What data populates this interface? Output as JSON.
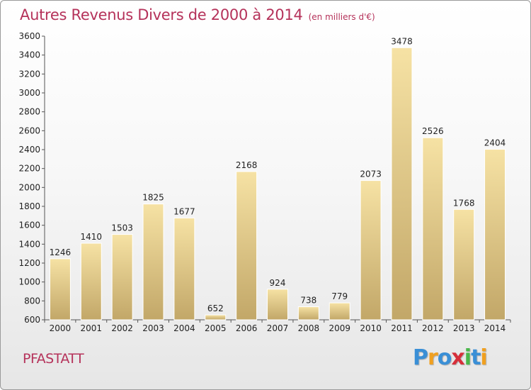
{
  "title": "Autres Revenus Divers de 2000 à 2014",
  "subtitle": "(en milliers d'€)",
  "commune": "PFASTATT",
  "logo": {
    "text": "Proxiti",
    "letters": [
      {
        "char": "P",
        "color": "#3a8fd6"
      },
      {
        "char": "r",
        "color": "#f0a020"
      },
      {
        "char": "o",
        "color": "#3a8fd6"
      },
      {
        "char": "x",
        "color": "#d62f3a"
      },
      {
        "char": "i",
        "color": "#49b84a"
      },
      {
        "char": "t",
        "color": "#3a8fd6"
      },
      {
        "char": "i",
        "color": "#f0a020"
      }
    ]
  },
  "colors": {
    "title": "#b5325a",
    "bar_light": "#f6e2a4",
    "bar_dark": "#c2a768"
  },
  "chart_data": {
    "type": "bar",
    "categories": [
      "2000",
      "2001",
      "2002",
      "2003",
      "2004",
      "2005",
      "2006",
      "2007",
      "2008",
      "2009",
      "2010",
      "2011",
      "2012",
      "2013",
      "2014"
    ],
    "values": [
      1246,
      1410,
      1503,
      1825,
      1677,
      652,
      2168,
      924,
      738,
      779,
      2073,
      3478,
      2526,
      1768,
      2404
    ],
    "ylim": [
      600,
      3600
    ],
    "yticks": [
      600,
      800,
      1000,
      1200,
      1400,
      1600,
      1800,
      2000,
      2200,
      2400,
      2600,
      2800,
      3000,
      3200,
      3400,
      3600
    ],
    "grid": false,
    "legend": "none"
  }
}
